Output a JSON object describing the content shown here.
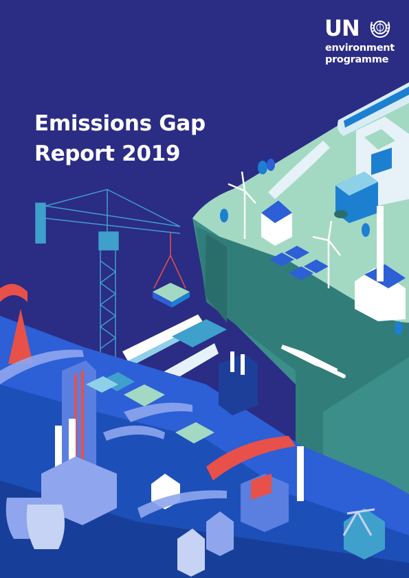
{
  "report": {
    "title_line1": "Emissions Gap",
    "title_line2": "Report 2019"
  },
  "logo": {
    "acronym": "UN",
    "line1": "environment",
    "line2": "programme",
    "emblem_icon": "un-emblem-icon"
  },
  "colors": {
    "background": "#2b2c84",
    "plateau": "#a3d9c3",
    "cliff": "#3b8e89",
    "city_blue": "#2d5fd6",
    "accent_red": "#e8504a"
  }
}
